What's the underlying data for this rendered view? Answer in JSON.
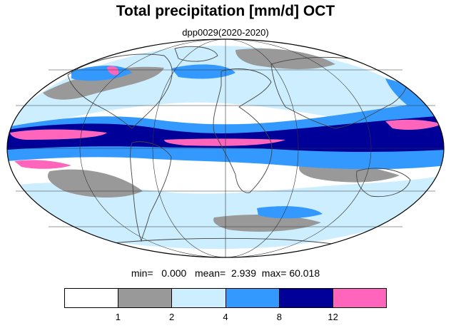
{
  "title": "Total precipitation [mm/d] OCT",
  "subtitle": "dpp0029(2020-2020)",
  "stats": {
    "min_label": "min=",
    "min_value": "0.000",
    "mean_label": "mean=",
    "mean_value": "2.939",
    "max_label": "max=",
    "max_value": "60.018"
  },
  "legend": {
    "bins": [
      {
        "color": "#ffffff",
        "range": "< 1"
      },
      {
        "color": "#999999",
        "range": "1-2"
      },
      {
        "color": "#cceeff",
        "range": "2-4"
      },
      {
        "color": "#3399ff",
        "range": "4-8"
      },
      {
        "color": "#000099",
        "range": "8-12"
      },
      {
        "color": "#ff66bb",
        "range": "> 12"
      }
    ],
    "tick_labels": [
      "1",
      "2",
      "4",
      "8",
      "12"
    ]
  },
  "map": {
    "projection": "mollweide",
    "ocean_background": "#ffffff",
    "coastline_color": "#555555",
    "grid": true
  }
}
